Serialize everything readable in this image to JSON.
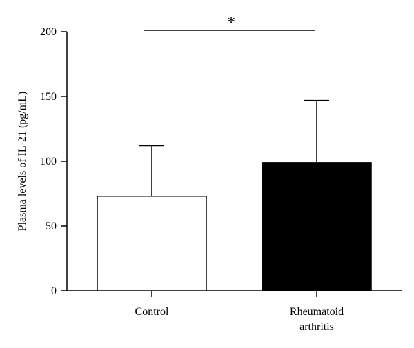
{
  "chart_data": {
    "type": "bar",
    "categories": [
      "Control",
      "Rheumatoid arthritis"
    ],
    "category_labels": [
      [
        "Control"
      ],
      [
        "Rheumatoid",
        "arthritis"
      ]
    ],
    "values": [
      73,
      99
    ],
    "error_upper": [
      112,
      147
    ],
    "bar_colors": [
      "#ffffff",
      "#000000"
    ],
    "bar_edge_color": "#000000",
    "title": "",
    "xlabel": "",
    "ylabel": "Plasma levels of IL-21 (pg/mL)",
    "ylim": [
      0,
      200
    ],
    "yticks": [
      0,
      50,
      100,
      150,
      200
    ],
    "significance": {
      "between": [
        "Control",
        "Rheumatoid arthritis"
      ],
      "label": "*",
      "at_value": 200
    },
    "grid": false,
    "legend": "none"
  }
}
